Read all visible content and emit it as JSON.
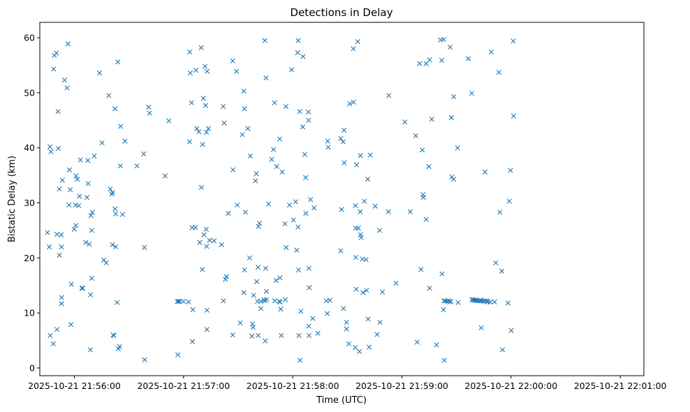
{
  "chart_data": {
    "type": "scatter",
    "title": "Detections in Delay",
    "xlabel": "Time (UTC)",
    "ylabel": "Bistatic Delay (km)",
    "marker": "x",
    "color": "#1f77b4",
    "x_unit": "seconds after 2025-10-21 21:56:00 UTC",
    "xlim": [
      -19,
      313
    ],
    "ylim": [
      -1.4,
      62.8
    ],
    "x_ticks": [
      0,
      60,
      120,
      180,
      240,
      300
    ],
    "x_tick_labels": [
      "2025-10-21 21:56:00",
      "2025-10-21 21:57:00",
      "2025-10-21 21:58:00",
      "2025-10-21 21:59:00",
      "2025-10-21 22:00:00",
      "2025-10-21 22:01:00"
    ],
    "y_ticks": [
      0,
      10,
      20,
      30,
      40,
      50,
      60
    ],
    "y_tick_labels": [
      "0",
      "10",
      "20",
      "30",
      "40",
      "50",
      "60"
    ],
    "grid": false,
    "points": [
      [
        -14.8,
        24.6
      ],
      [
        -13.8,
        22.0
      ],
      [
        -13.4,
        40.2
      ],
      [
        -12.9,
        39.3
      ],
      [
        -13.3,
        5.9
      ],
      [
        -11.6,
        4.4
      ],
      [
        -11.4,
        54.3
      ],
      [
        -11.0,
        56.8
      ],
      [
        -9.9,
        57.2
      ],
      [
        -9.6,
        24.3
      ],
      [
        -9.6,
        7.0
      ],
      [
        -9.0,
        46.6
      ],
      [
        -8.8,
        39.9
      ],
      [
        -8.3,
        32.5
      ],
      [
        -8.2,
        20.5
      ],
      [
        -7.2,
        24.2
      ],
      [
        -7.1,
        22.0
      ],
      [
        -7.1,
        11.7
      ],
      [
        -7.0,
        12.8
      ],
      [
        -6.6,
        34.1
      ],
      [
        -5.4,
        52.3
      ],
      [
        -4.0,
        50.9
      ],
      [
        -3.5,
        58.9
      ],
      [
        -2.9,
        29.6
      ],
      [
        -2.7,
        36.0
      ],
      [
        -2.3,
        32.4
      ],
      [
        -1.9,
        7.9
      ],
      [
        -1.6,
        15.2
      ],
      [
        -0.1,
        25.2
      ],
      [
        0.6,
        29.6
      ],
      [
        0.9,
        34.9
      ],
      [
        0.8,
        25.9
      ],
      [
        1.6,
        34.3
      ],
      [
        2.4,
        29.5
      ],
      [
        2.8,
        31.2
      ],
      [
        3.3,
        37.8
      ],
      [
        4.1,
        14.5
      ],
      [
        4.6,
        14.5
      ],
      [
        6.2,
        22.8
      ],
      [
        6.9,
        31.0
      ],
      [
        7.6,
        33.5
      ],
      [
        7.4,
        37.7
      ],
      [
        8.2,
        22.5
      ],
      [
        8.9,
        13.3
      ],
      [
        8.8,
        3.3
      ],
      [
        9.1,
        27.7
      ],
      [
        9.5,
        16.3
      ],
      [
        9.5,
        25.0
      ],
      [
        9.9,
        28.3
      ],
      [
        10.9,
        38.5
      ],
      [
        13.8,
        53.6
      ],
      [
        15.2,
        40.9
      ],
      [
        16.2,
        19.6
      ],
      [
        17.5,
        19.1
      ],
      [
        18.9,
        49.5
      ],
      [
        19.7,
        32.5
      ],
      [
        20.6,
        31.6
      ],
      [
        21.0,
        31.9
      ],
      [
        20.9,
        22.4
      ],
      [
        21.3,
        6.0
      ],
      [
        21.7,
        5.9
      ],
      [
        22.3,
        28.9
      ],
      [
        22.7,
        28.0
      ],
      [
        22.3,
        47.1
      ],
      [
        22.7,
        22.0
      ],
      [
        23.5,
        11.9
      ],
      [
        23.9,
        55.6
      ],
      [
        24.2,
        3.5
      ],
      [
        24.9,
        3.9
      ],
      [
        25.4,
        43.9
      ],
      [
        25.3,
        36.7
      ],
      [
        26.5,
        27.9
      ],
      [
        27.8,
        41.2
      ],
      [
        34.4,
        36.7
      ],
      [
        38.1,
        38.9
      ],
      [
        38.6,
        1.5
      ],
      [
        38.5,
        21.9
      ],
      [
        40.8,
        47.4
      ],
      [
        41.3,
        46.3
      ],
      [
        49.9,
        34.9
      ],
      [
        51.9,
        44.9
      ],
      [
        56.9,
        2.4
      ],
      [
        56.5,
        12.1
      ],
      [
        57.2,
        12.1
      ],
      [
        57.9,
        12.1
      ],
      [
        59.9,
        12.1
      ],
      [
        62.7,
        12.0
      ],
      [
        63.3,
        41.1
      ],
      [
        63.4,
        57.4
      ],
      [
        63.7,
        53.6
      ],
      [
        64.4,
        48.2
      ],
      [
        64.7,
        25.5
      ],
      [
        64.9,
        4.8
      ],
      [
        65.1,
        10.6
      ],
      [
        66.5,
        25.5
      ],
      [
        66.8,
        54.1
      ],
      [
        67.3,
        43.5
      ],
      [
        68.5,
        42.9
      ],
      [
        68.9,
        22.8
      ],
      [
        69.8,
        32.8
      ],
      [
        69.7,
        58.2
      ],
      [
        70.3,
        17.9
      ],
      [
        70.5,
        40.6
      ],
      [
        70.9,
        49.0
      ],
      [
        71.2,
        24.2
      ],
      [
        71.8,
        54.8
      ],
      [
        72.1,
        47.7
      ],
      [
        72.5,
        25.2
      ],
      [
        72.6,
        42.8
      ],
      [
        72.7,
        22.1
      ],
      [
        72.8,
        7.0
      ],
      [
        72.9,
        10.5
      ],
      [
        73.0,
        53.9
      ],
      [
        73.7,
        43.5
      ],
      [
        74.3,
        23.2
      ],
      [
        76.8,
        23.1
      ],
      [
        80.9,
        22.4
      ],
      [
        81.8,
        47.5
      ],
      [
        81.9,
        12.2
      ],
      [
        82.3,
        44.5
      ],
      [
        83.0,
        16.1
      ],
      [
        83.6,
        16.6
      ],
      [
        84.6,
        28.1
      ],
      [
        87.0,
        55.8
      ],
      [
        87.2,
        36.0
      ],
      [
        87.0,
        6.0
      ],
      [
        89.1,
        53.9
      ],
      [
        89.5,
        29.6
      ],
      [
        91.2,
        8.2
      ],
      [
        92.3,
        42.4
      ],
      [
        93.1,
        50.3
      ],
      [
        93.5,
        47.1
      ],
      [
        93.1,
        13.7
      ],
      [
        93.5,
        17.8
      ],
      [
        94.0,
        28.3
      ],
      [
        95.3,
        43.5
      ],
      [
        96.3,
        20.0
      ],
      [
        96.7,
        38.5
      ],
      [
        97.5,
        5.8
      ],
      [
        97.9,
        8.0
      ],
      [
        98.2,
        7.4
      ],
      [
        98.5,
        13.2
      ],
      [
        99.5,
        34.0
      ],
      [
        100.0,
        35.3
      ],
      [
        100.2,
        15.7
      ],
      [
        100.6,
        12.1
      ],
      [
        100.9,
        18.3
      ],
      [
        101.0,
        5.9
      ],
      [
        101.2,
        25.7
      ],
      [
        101.7,
        26.3
      ],
      [
        102.4,
        12.1
      ],
      [
        102.5,
        10.8
      ],
      [
        104.2,
        12.4
      ],
      [
        104.6,
        59.5
      ],
      [
        104.6,
        12.2
      ],
      [
        105.1,
        18.1
      ],
      [
        104.9,
        4.9
      ],
      [
        105.3,
        52.7
      ],
      [
        105.6,
        12.4
      ],
      [
        105.6,
        13.9
      ],
      [
        106.7,
        29.8
      ],
      [
        108.4,
        37.9
      ],
      [
        109.4,
        39.7
      ],
      [
        110.0,
        48.2
      ],
      [
        110.1,
        12.2
      ],
      [
        110.9,
        15.9
      ],
      [
        111.2,
        36.6
      ],
      [
        112.5,
        12.1
      ],
      [
        112.8,
        41.6
      ],
      [
        113.0,
        16.4
      ],
      [
        113.1,
        12.0
      ],
      [
        113.4,
        10.7
      ],
      [
        113.7,
        5.9
      ],
      [
        114.2,
        35.6
      ],
      [
        115.7,
        26.2
      ],
      [
        115.9,
        12.4
      ],
      [
        116.3,
        47.5
      ],
      [
        116.4,
        21.9
      ],
      [
        118.2,
        29.6
      ],
      [
        119.4,
        54.2
      ],
      [
        120.4,
        26.9
      ],
      [
        121.6,
        30.2
      ],
      [
        122.2,
        21.4
      ],
      [
        122.7,
        57.3
      ],
      [
        122.9,
        25.6
      ],
      [
        123.0,
        59.5
      ],
      [
        123.2,
        17.8
      ],
      [
        123.4,
        5.9
      ],
      [
        123.8,
        46.6
      ],
      [
        124.0,
        1.4
      ],
      [
        124.5,
        10.3
      ],
      [
        125.5,
        43.8
      ],
      [
        125.7,
        56.6
      ],
      [
        126.6,
        38.8
      ],
      [
        127.1,
        34.6
      ],
      [
        127.2,
        28.1
      ],
      [
        128.6,
        46.5
      ],
      [
        128.7,
        45.0
      ],
      [
        128.9,
        18.1
      ],
      [
        129.1,
        14.6
      ],
      [
        129.0,
        5.9
      ],
      [
        128.8,
        7.6
      ],
      [
        129.8,
        30.6
      ],
      [
        131.0,
        9.0
      ],
      [
        131.7,
        29.1
      ],
      [
        133.8,
        6.3
      ],
      [
        138.5,
        12.2
      ],
      [
        139.2,
        41.2
      ],
      [
        139.0,
        9.9
      ],
      [
        139.5,
        40.1
      ],
      [
        140.4,
        12.3
      ],
      [
        146.4,
        41.7
      ],
      [
        146.4,
        21.3
      ],
      [
        146.8,
        28.8
      ],
      [
        147.7,
        41.1
      ],
      [
        147.9,
        10.8
      ],
      [
        148.2,
        43.2
      ],
      [
        148.3,
        37.3
      ],
      [
        149.6,
        8.3
      ],
      [
        149.6,
        7.1
      ],
      [
        150.8,
        4.4
      ],
      [
        151.3,
        48.0
      ],
      [
        153.4,
        48.3
      ],
      [
        153.3,
        58.0
      ],
      [
        154.3,
        3.7
      ],
      [
        154.5,
        29.5
      ],
      [
        154.6,
        20.1
      ],
      [
        154.6,
        25.4
      ],
      [
        154.9,
        14.3
      ],
      [
        155.1,
        36.9
      ],
      [
        155.7,
        59.3
      ],
      [
        156.1,
        25.4
      ],
      [
        156.6,
        3.0
      ],
      [
        157.1,
        28.4
      ],
      [
        157.3,
        24.2
      ],
      [
        157.2,
        38.6
      ],
      [
        157.6,
        23.7
      ],
      [
        158.3,
        19.8
      ],
      [
        158.6,
        13.7
      ],
      [
        159.4,
        30.3
      ],
      [
        160.3,
        19.7
      ],
      [
        160.6,
        14.1
      ],
      [
        161.2,
        34.3
      ],
      [
        161.4,
        8.9
      ],
      [
        162.0,
        3.8
      ],
      [
        162.6,
        38.7
      ],
      [
        165.3,
        29.4
      ],
      [
        166.4,
        6.1
      ],
      [
        167.7,
        25.0
      ],
      [
        167.9,
        8.3
      ],
      [
        169.3,
        13.8
      ],
      [
        172.8,
        49.5
      ],
      [
        172.6,
        28.4
      ],
      [
        176.8,
        15.4
      ],
      [
        181.6,
        44.7
      ],
      [
        184.6,
        28.4
      ],
      [
        187.6,
        42.2
      ],
      [
        188.4,
        4.7
      ],
      [
        189.7,
        55.3
      ],
      [
        190.5,
        17.9
      ],
      [
        191.2,
        39.6
      ],
      [
        191.6,
        31.5
      ],
      [
        191.8,
        31.0
      ],
      [
        193.3,
        27.0
      ],
      [
        193.3,
        55.3
      ],
      [
        194.8,
        36.6
      ],
      [
        195.2,
        14.5
      ],
      [
        195.2,
        56.0
      ],
      [
        196.4,
        45.2
      ],
      [
        199.0,
        4.2
      ],
      [
        201.2,
        59.6
      ],
      [
        201.9,
        55.9
      ],
      [
        202.0,
        17.1
      ],
      [
        202.9,
        59.7
      ],
      [
        202.8,
        10.6
      ],
      [
        203.3,
        1.4
      ],
      [
        203.1,
        12.2
      ],
      [
        203.9,
        12.2
      ],
      [
        204.9,
        12.1
      ],
      [
        205.7,
        12.2
      ],
      [
        206.3,
        12.0
      ],
      [
        206.5,
        58.3
      ],
      [
        206.9,
        12.1
      ],
      [
        207.2,
        45.5
      ],
      [
        207.4,
        34.7
      ],
      [
        208.4,
        34.3
      ],
      [
        208.5,
        49.3
      ],
      [
        210.6,
        40.0
      ],
      [
        210.9,
        11.9
      ],
      [
        216.5,
        56.2
      ],
      [
        218.4,
        49.9
      ],
      [
        218.5,
        12.4
      ],
      [
        219.1,
        12.4
      ],
      [
        219.8,
        12.3
      ],
      [
        220.4,
        12.3
      ],
      [
        221.2,
        12.3
      ],
      [
        221.5,
        12.2
      ],
      [
        222.5,
        12.2
      ],
      [
        223.2,
        12.3
      ],
      [
        223.6,
        7.3
      ],
      [
        223.6,
        12.2
      ],
      [
        224.5,
        12.2
      ],
      [
        225.2,
        12.1
      ],
      [
        225.7,
        35.6
      ],
      [
        226.3,
        12.2
      ],
      [
        226.8,
        12.0
      ],
      [
        227.2,
        12.1
      ],
      [
        228.5,
        12.0
      ],
      [
        229.1,
        57.4
      ],
      [
        230.9,
        12.0
      ],
      [
        231.6,
        19.1
      ],
      [
        233.3,
        53.7
      ],
      [
        233.8,
        28.3
      ],
      [
        234.9,
        17.6
      ],
      [
        235.3,
        3.3
      ],
      [
        238.3,
        11.8
      ],
      [
        239.0,
        30.3
      ],
      [
        239.7,
        35.9
      ],
      [
        240.1,
        6.8
      ],
      [
        241.2,
        59.4
      ],
      [
        241.4,
        45.8
      ]
    ]
  }
}
